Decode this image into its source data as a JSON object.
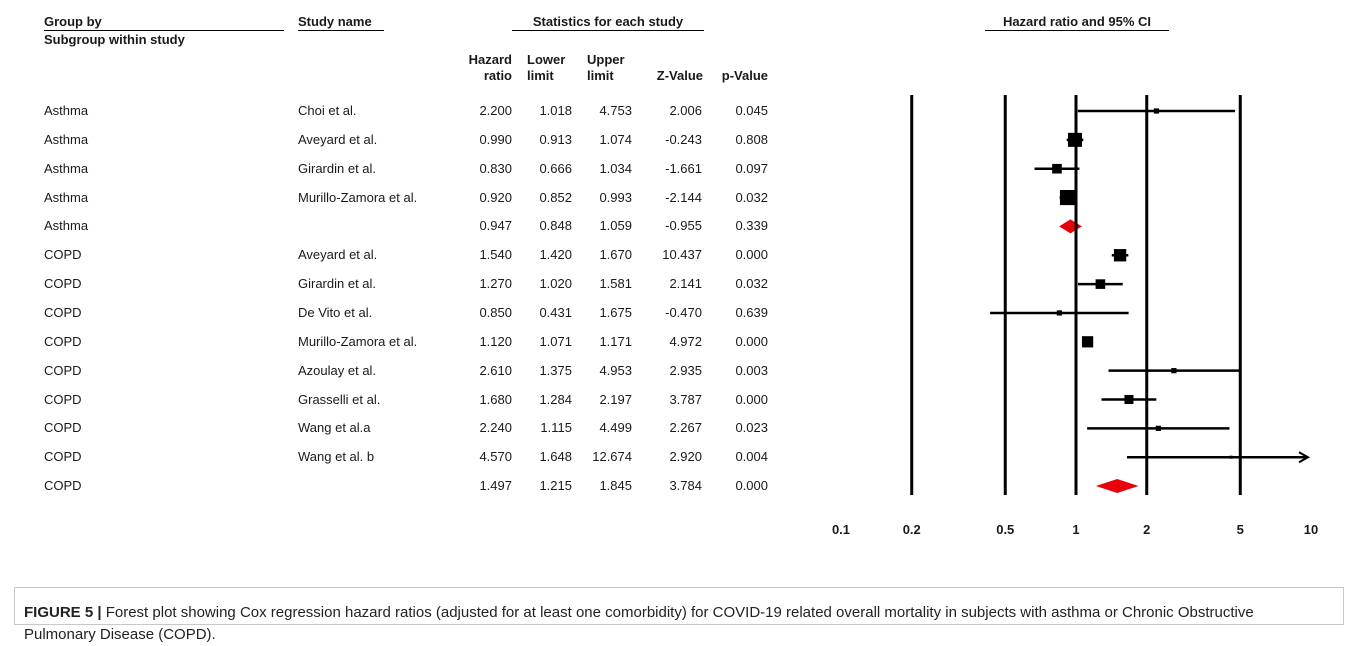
{
  "headers": {
    "group_by": "Group by",
    "subgroup": "Subgroup within study",
    "study_name": "Study name",
    "stats_title": "Statistics for each study",
    "plot_title": "Hazard ratio and 95%  CI",
    "col_hr": "Hazard ratio",
    "col_lower": "Lower limit",
    "col_upper": "Upper limit",
    "col_z": "Z-Value",
    "col_p": "p-Value"
  },
  "chart_data": {
    "type": "forest",
    "title": "Hazard ratio and 95%  CI",
    "x_scale": "log",
    "xlim": [
      0.1,
      10
    ],
    "x_ticks": [
      0.1,
      0.2,
      0.5,
      1,
      2,
      5,
      10
    ],
    "x_tick_labels": [
      "0.1",
      "0.2",
      "0.5",
      "1",
      "2",
      "5",
      "10"
    ],
    "reference_line": 1,
    "rows": [
      {
        "group": "Asthma",
        "study": "Choi et al.",
        "hr": "2.200",
        "lower": "1.018",
        "upper": "4.753",
        "z": "2.006",
        "p": "0.045",
        "kind": "study",
        "weight": 0.2
      },
      {
        "group": "Asthma",
        "study": "Aveyard et al.",
        "hr": "0.990",
        "lower": "0.913",
        "upper": "1.074",
        "z": "-0.243",
        "p": "0.808",
        "kind": "study",
        "weight": 1.0
      },
      {
        "group": "Asthma",
        "study": "Girardin et al.",
        "hr": "0.830",
        "lower": "0.666",
        "upper": "1.034",
        "z": "-1.661",
        "p": "0.097",
        "kind": "study",
        "weight": 0.6
      },
      {
        "group": "Asthma",
        "study": "Murillo-Zamora et al.",
        "hr": "0.920",
        "lower": "0.852",
        "upper": "0.993",
        "z": "-2.144",
        "p": "0.032",
        "kind": "study",
        "weight": 1.1
      },
      {
        "group": "Asthma",
        "study": "",
        "hr": "0.947",
        "lower": "0.848",
        "upper": "1.059",
        "z": "-0.955",
        "p": "0.339",
        "kind": "summary",
        "weight": 1.0
      },
      {
        "group": "COPD",
        "study": "Aveyard et al.",
        "hr": "1.540",
        "lower": "1.420",
        "upper": "1.670",
        "z": "10.437",
        "p": "0.000",
        "kind": "study",
        "weight": 0.85
      },
      {
        "group": "COPD",
        "study": "Girardin et al.",
        "hr": "1.270",
        "lower": "1.020",
        "upper": "1.581",
        "z": "2.141",
        "p": "0.032",
        "kind": "study",
        "weight": 0.6
      },
      {
        "group": "COPD",
        "study": "De Vito et al.",
        "hr": "0.850",
        "lower": "0.431",
        "upper": "1.675",
        "z": "-0.470",
        "p": "0.639",
        "kind": "study",
        "weight": 0.2
      },
      {
        "group": "COPD",
        "study": "Murillo-Zamora et al.",
        "hr": "1.120",
        "lower": "1.071",
        "upper": "1.171",
        "z": "4.972",
        "p": "0.000",
        "kind": "study",
        "weight": 0.75
      },
      {
        "group": "COPD",
        "study": "Azoulay et al.",
        "hr": "2.610",
        "lower": "1.375",
        "upper": "4.953",
        "z": "2.935",
        "p": "0.003",
        "kind": "study",
        "weight": 0.2
      },
      {
        "group": "COPD",
        "study": "Grasselli et al.",
        "hr": "1.680",
        "lower": "1.284",
        "upper": "2.197",
        "z": "3.787",
        "p": "0.000",
        "kind": "study",
        "weight": 0.55
      },
      {
        "group": "COPD",
        "study": "Wang et al.a",
        "hr": "2.240",
        "lower": "1.115",
        "upper": "4.499",
        "z": "2.267",
        "p": "0.023",
        "kind": "study",
        "weight": 0.2
      },
      {
        "group": "COPD",
        "study": "Wang et al. b",
        "hr": "4.570",
        "lower": "1.648",
        "upper": "12.674",
        "z": "2.920",
        "p": "0.004",
        "kind": "study",
        "weight": 0.0,
        "arrow_right": true
      },
      {
        "group": "COPD",
        "study": "",
        "hr": "1.497",
        "lower": "1.215",
        "upper": "1.845",
        "z": "3.784",
        "p": "0.000",
        "kind": "summary",
        "weight": 1.0
      }
    ],
    "colors": {
      "summary_diamond": "#e8000b",
      "marker": "#000000"
    }
  },
  "caption": {
    "label": "FIGURE 5 |",
    "text": " Forest plot showing Cox regression hazard ratios (adjusted for at least one comorbidity) for COVID-19 related overall mortality in subjects with asthma or Chronic Obstructive Pulmonary Disease (COPD)."
  }
}
